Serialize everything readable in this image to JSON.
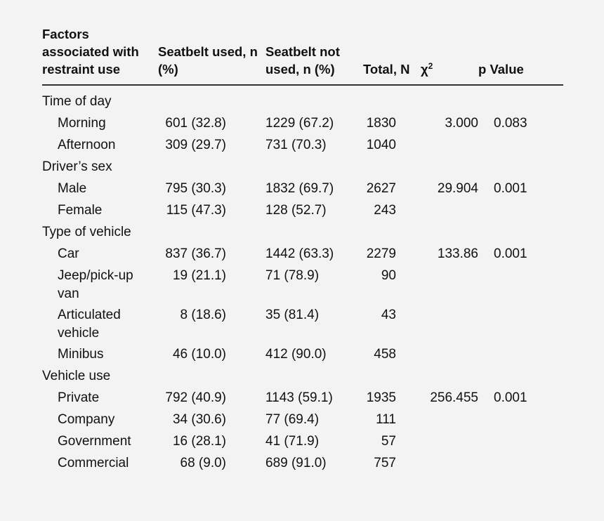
{
  "header": {
    "factors": "Factors associated with restraint use",
    "used": "Seatbelt used, n (%)",
    "not_used": "Seatbelt not used, n (%)",
    "total": "Total, N",
    "chi": "χ",
    "chi_sup": "2",
    "p": "p Value"
  },
  "groups": [
    {
      "label": "Time of day",
      "rows": [
        {
          "label": "Morning",
          "used": "601 (32.8)",
          "not_used": "1229 (67.2)",
          "total": "1830",
          "chi": "3.000",
          "p": "0.083"
        },
        {
          "label": "Afternoon",
          "used": "309 (29.7)",
          "not_used": "731 (70.3)",
          "total": "1040",
          "chi": "",
          "p": ""
        }
      ]
    },
    {
      "label": "Driver’s sex",
      "rows": [
        {
          "label": "Male",
          "used": "795 (30.3)",
          "not_used": "1832 (69.7)",
          "total": "2627",
          "chi": "29.904",
          "p": "0.001"
        },
        {
          "label": "Female",
          "used": "115 (47.3)",
          "not_used": "128 (52.7)",
          "total": "243",
          "chi": "",
          "p": ""
        }
      ]
    },
    {
      "label": "Type of vehicle",
      "rows": [
        {
          "label": "Car",
          "used": "837 (36.7)",
          "not_used": "1442 (63.3)",
          "total": "2279",
          "chi": "133.86",
          "p": "0.001"
        },
        {
          "label": "Jeep/pick-up van",
          "used": "19 (21.1)",
          "not_used": "71 (78.9)",
          "total": "90",
          "chi": "",
          "p": ""
        },
        {
          "label": "Articulated vehicle",
          "used": "8 (18.6)",
          "not_used": "35 (81.4)",
          "total": "43",
          "chi": "",
          "p": ""
        },
        {
          "label": "Minibus",
          "used": "46 (10.0)",
          "not_used": "412 (90.0)",
          "total": "458",
          "chi": "",
          "p": ""
        }
      ]
    },
    {
      "label": "Vehicle use",
      "rows": [
        {
          "label": "Private",
          "used": "792 (40.9)",
          "not_used": "1143 (59.1)",
          "total": "1935",
          "chi": "256.455",
          "p": "0.001"
        },
        {
          "label": "Company",
          "used": "34 (30.6)",
          "not_used": "77 (69.4)",
          "total": "111",
          "chi": "",
          "p": ""
        },
        {
          "label": "Government",
          "used": "16 (28.1)",
          "not_used": "41 (71.9)",
          "total": "57",
          "chi": "",
          "p": ""
        },
        {
          "label": "Commercial",
          "used": "68 (9.0)",
          "not_used": "689 (91.0)",
          "total": "757",
          "chi": "",
          "p": ""
        }
      ]
    }
  ]
}
